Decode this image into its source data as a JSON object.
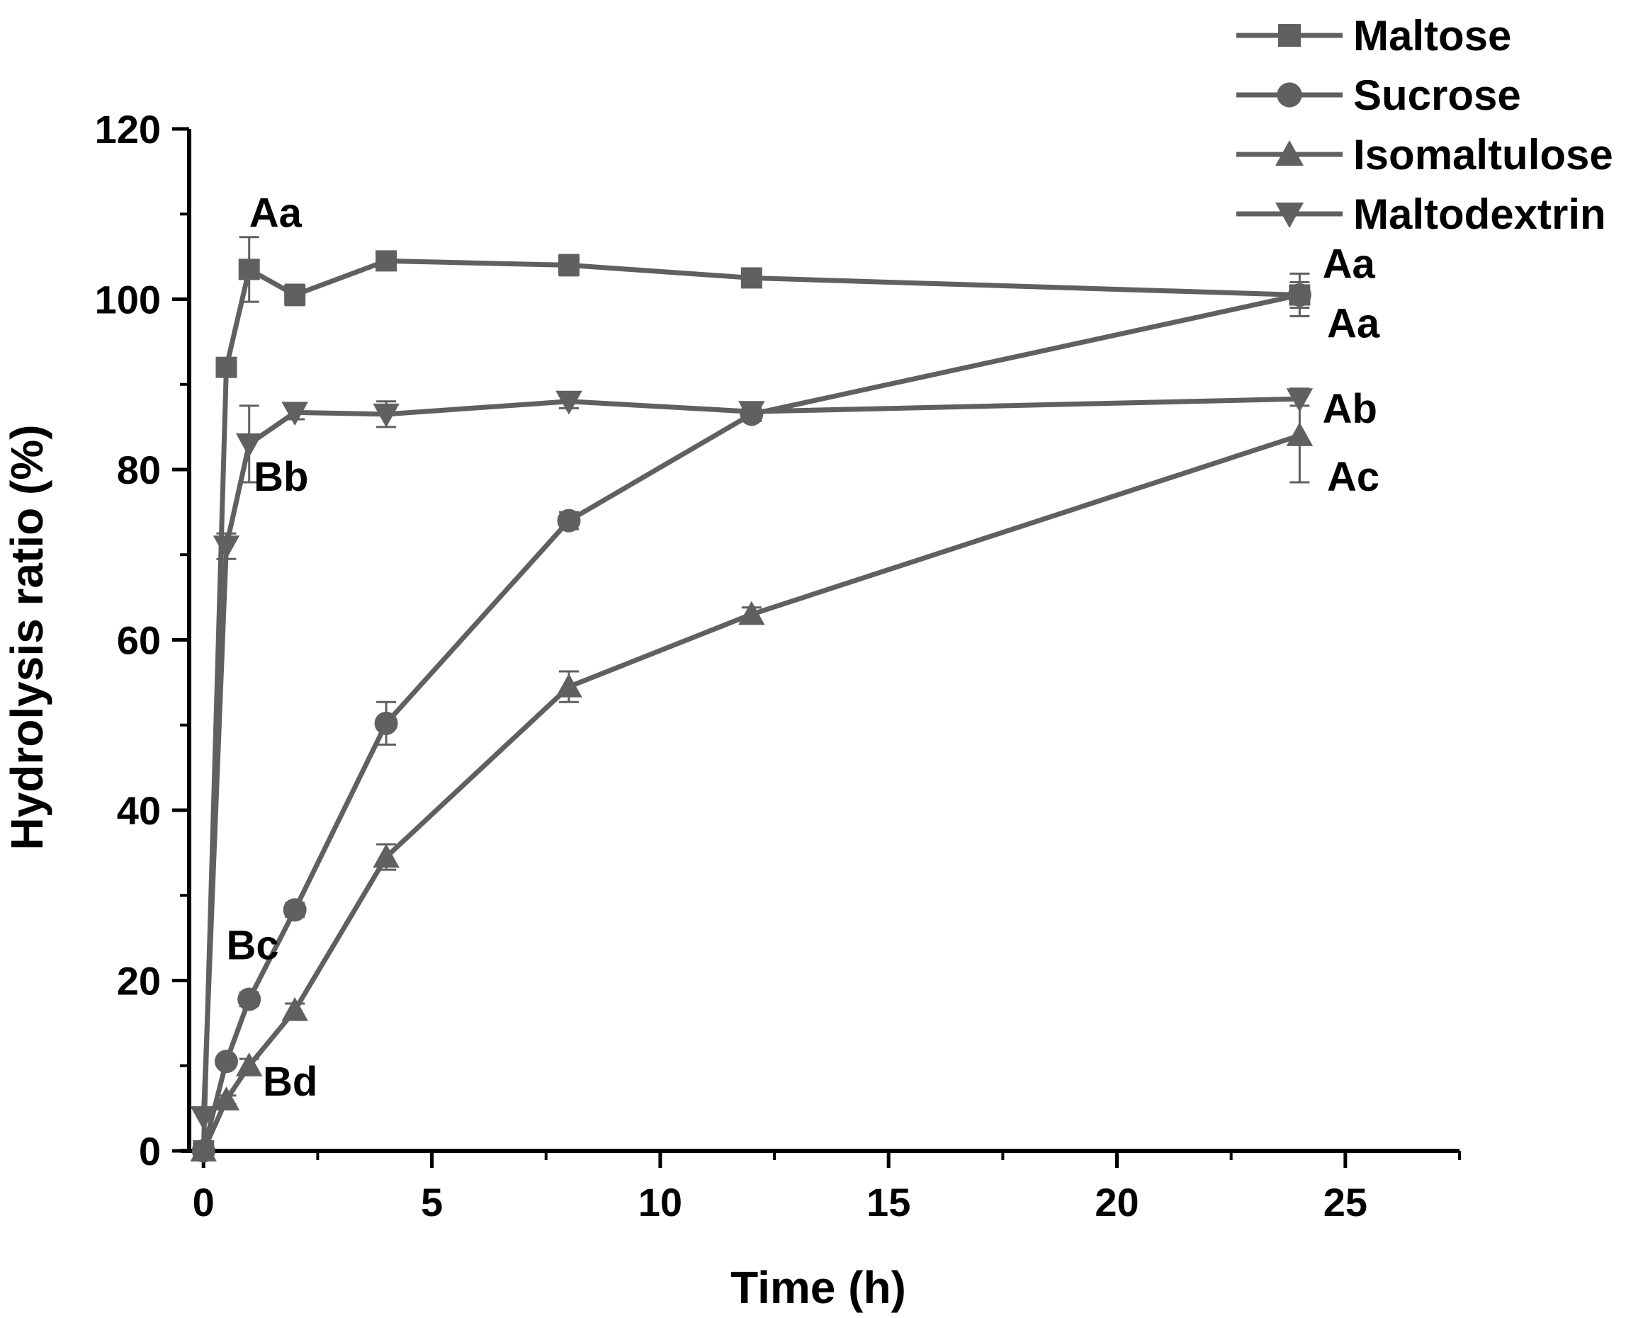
{
  "chart_data": {
    "type": "line",
    "title": "",
    "xlabel": "Time (h)",
    "ylabel": "Hydrolysis ratio (%)",
    "xlim": [
      -0.5,
      27.5
    ],
    "ylim": [
      0,
      120
    ],
    "xticks": [
      0,
      5,
      10,
      15,
      20,
      25
    ],
    "yticks": [
      0,
      20,
      40,
      60,
      80,
      100,
      120
    ],
    "grid": false,
    "legend_position": "top-right",
    "line_color": "#606060",
    "series": [
      {
        "name": "Maltose",
        "marker": "square",
        "x": [
          0,
          0.5,
          1,
          2,
          4,
          8,
          12,
          24
        ],
        "y": [
          0,
          92,
          103.5,
          100.5,
          104.5,
          104,
          102.5,
          100.5
        ],
        "err": [
          0,
          0.8,
          3.8,
          1.2,
          1.0,
          1.2,
          0.8,
          1.5
        ]
      },
      {
        "name": "Sucrose",
        "marker": "circle",
        "x": [
          0,
          0.5,
          1,
          2,
          4,
          8,
          12,
          24
        ],
        "y": [
          0,
          10.5,
          17.8,
          28.3,
          50.2,
          74,
          86.5,
          100.5
        ],
        "err": [
          0,
          0.5,
          0.8,
          0.8,
          2.5,
          1.0,
          0.8,
          2.5
        ]
      },
      {
        "name": "Isomaltulose",
        "marker": "triangle-up",
        "x": [
          0,
          0.5,
          1,
          2,
          4,
          8,
          12,
          24
        ],
        "y": [
          0,
          6,
          10,
          16.5,
          34.5,
          54.5,
          63,
          84
        ],
        "err": [
          0,
          0.5,
          0.8,
          0.8,
          1.5,
          1.8,
          0.8,
          5.5
        ]
      },
      {
        "name": "Maltodextrin",
        "marker": "triangle-down",
        "x": [
          0,
          0.5,
          1,
          2,
          4,
          8,
          12,
          24
        ],
        "y": [
          4,
          71,
          83,
          86.7,
          86.5,
          88,
          86.8,
          88.3
        ],
        "err": [
          0,
          1.5,
          4.5,
          0.8,
          1.5,
          0.8,
          0.8,
          0.8
        ]
      }
    ],
    "annotations": [
      {
        "text": "Aa",
        "x": 1,
        "y": 108.5
      },
      {
        "text": "Bb",
        "x": 1.1,
        "y": 77.5
      },
      {
        "text": "Bc",
        "x": 0.5,
        "y": 22.5
      },
      {
        "text": "Bd",
        "x": 1.3,
        "y": 6.5
      },
      {
        "text": "Aa",
        "x": 24.5,
        "y": 102.5
      },
      {
        "text": "Aa",
        "x": 24.6,
        "y": 95.5
      },
      {
        "text": "Ab",
        "x": 24.5,
        "y": 85.5
      },
      {
        "text": "Ac",
        "x": 24.6,
        "y": 77.5
      }
    ]
  }
}
